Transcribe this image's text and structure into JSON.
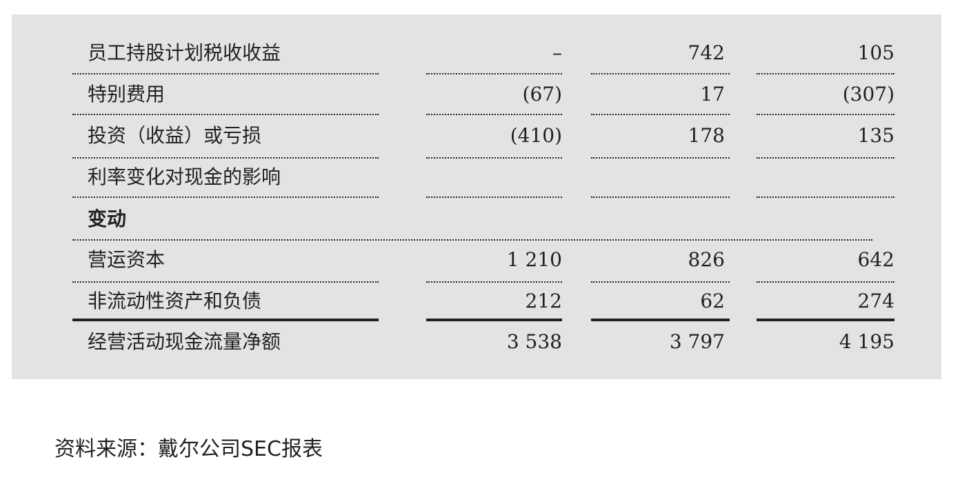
{
  "table": {
    "rows": [
      {
        "label": "员工持股计划税收收益",
        "v1": "–",
        "v2": "742",
        "v3": "105"
      },
      {
        "label": "特别费用",
        "v1": "(67)",
        "v2": "17",
        "v3": "(307)"
      },
      {
        "label": "投资（收益）或亏损",
        "v1": "(410)",
        "v2": "178",
        "v3": "135"
      },
      {
        "label": "利率变化对现金的影响",
        "v1": "",
        "v2": "",
        "v3": ""
      },
      {
        "label": "变动",
        "v1": "",
        "v2": "",
        "v3": ""
      },
      {
        "label": "营运资本",
        "v1": "1 210",
        "v2": "826",
        "v3": "642"
      },
      {
        "label": "非流动性资产和负债",
        "v1": "212",
        "v2": "62",
        "v3": "274"
      },
      {
        "label": "经营活动现金流量净额",
        "v1": "3 538",
        "v2": "3 797",
        "v3": "4 195"
      }
    ]
  },
  "source_note": "资料来源：戴尔公司SEC报表"
}
